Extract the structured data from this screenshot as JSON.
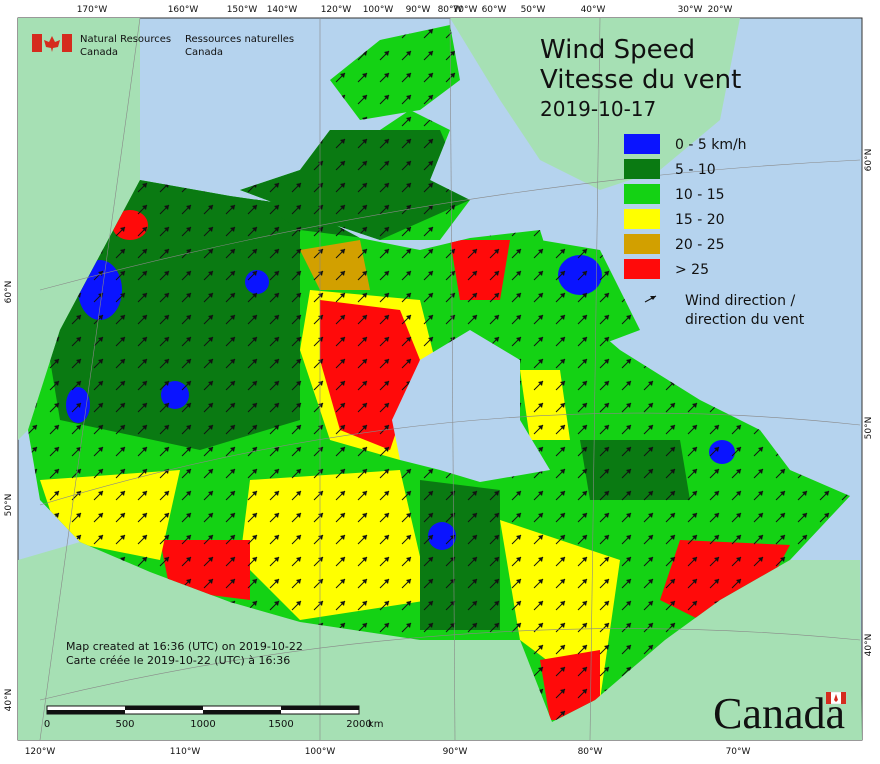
{
  "header": {
    "agency_en": [
      "Natural Resources",
      "Canada"
    ],
    "agency_fr": [
      "Ressources naturelles",
      "Canada"
    ]
  },
  "title": {
    "en": "Wind Speed",
    "fr": "Vitesse du vent",
    "date": "2019-10-17"
  },
  "legend": {
    "items": [
      {
        "label": "0 - 5 km/h",
        "color": "#0a14ff"
      },
      {
        "label": "5 - 10",
        "color": "#0a7a12"
      },
      {
        "label": "10 - 15",
        "color": "#14d214"
      },
      {
        "label": "15 - 20",
        "color": "#ffff00"
      },
      {
        "label": "20 - 25",
        "color": "#d2a000"
      },
      {
        "label": "> 25",
        "color": "#ff0a0a"
      }
    ],
    "direction": [
      "Wind direction /",
      "direction du vent"
    ]
  },
  "note": [
    "Map created at 16:36 (UTC) on 2019-10-22",
    "Carte créée le 2019-10-22 (UTC) à 16:36"
  ],
  "scale_bar": {
    "labels": [
      "0",
      "500",
      "1000",
      "1500",
      "2000"
    ],
    "unit": "km"
  },
  "graticule": {
    "top": [
      "170°W",
      "160°W",
      "150°W",
      "140°W",
      "120°W",
      "100°W",
      "90°W",
      "80°W",
      "70°W",
      "60°W",
      "50°W",
      "40°W",
      "30°W",
      "20°W"
    ],
    "bottom": [
      "120°W",
      "110°W",
      "100°W",
      "90°W",
      "80°W",
      "70°W"
    ],
    "left": [
      "60°N",
      "50°N",
      "40°N"
    ],
    "right": [
      "60°N",
      "50°N",
      "40°N"
    ]
  },
  "wordmark": "Canada"
}
